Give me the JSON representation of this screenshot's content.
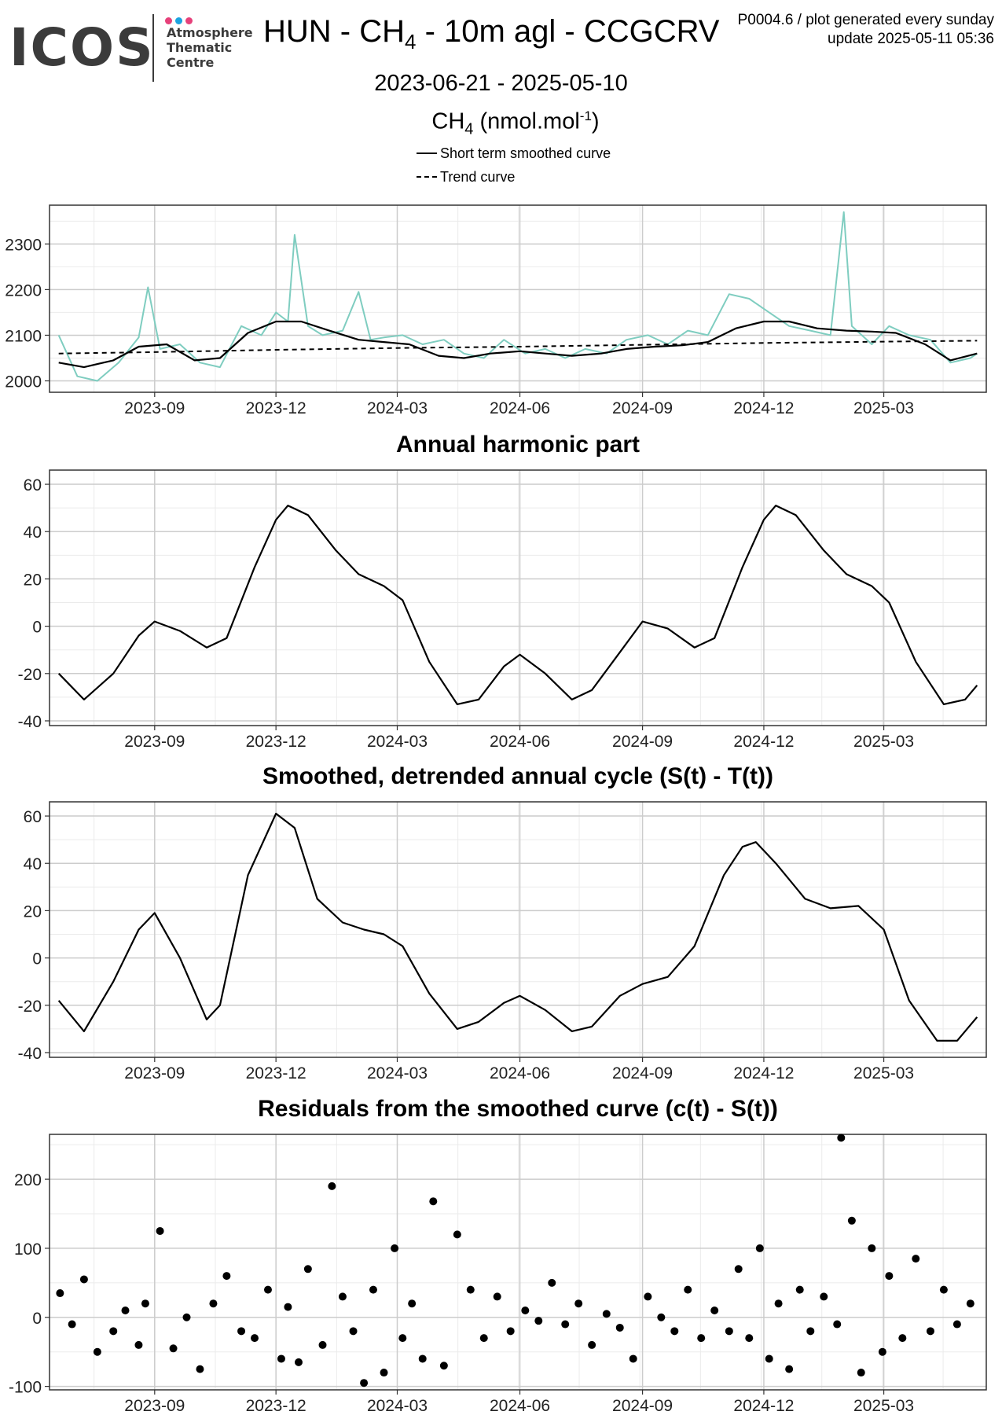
{
  "header": {
    "logo_word": "ICOS",
    "logo_lines": [
      "Atmosphere",
      "Thematic",
      "Centre"
    ],
    "title_parts": [
      "HUN - CH",
      "4",
      " - 10m agl - CCGCRV"
    ],
    "note_line1": "P0004.6 / plot generated every sunday",
    "note_line2": "update  2025-05-11 05:36",
    "date_range": "2023-06-21 - 2025-05-10",
    "ylabel_parts": [
      "CH",
      "4",
      " (nmol.mol",
      "-1",
      ")"
    ],
    "legend": [
      "Short term smoothed curve",
      "Trend curve"
    ]
  },
  "colors": {
    "raw_series": "#7fcdc0",
    "curve": "#000000",
    "logo_dot1": "#e6407a",
    "logo_dot2": "#1ba3e0",
    "logo_dot3": "#e6407a"
  },
  "chart_data": [
    {
      "type": "line",
      "title": "",
      "x_range": [
        "2023-06-21",
        "2025-05-10"
      ],
      "x_ticks": [
        "2023-09",
        "2023-12",
        "2024-03",
        "2024-06",
        "2024-09",
        "2024-12",
        "2025-03"
      ],
      "y_ticks": [
        2000,
        2100,
        2200,
        2300
      ],
      "ylim": [
        1975,
        2385
      ],
      "grid": true,
      "series": [
        {
          "name": "",
          "style": "raw",
          "x": [
            "2023-06-21",
            "2023-07-05",
            "2023-07-20",
            "2023-08-05",
            "2023-08-20",
            "2023-08-27",
            "2023-09-05",
            "2023-09-20",
            "2023-10-05",
            "2023-10-20",
            "2023-11-05",
            "2023-11-20",
            "2023-12-01",
            "2023-12-10",
            "2023-12-15",
            "2023-12-25",
            "2024-01-05",
            "2024-01-20",
            "2024-02-01",
            "2024-02-10",
            "2024-02-20",
            "2024-03-05",
            "2024-03-20",
            "2024-04-05",
            "2024-04-20",
            "2024-05-05",
            "2024-05-20",
            "2024-06-05",
            "2024-06-20",
            "2024-07-05",
            "2024-07-20",
            "2024-08-05",
            "2024-08-20",
            "2024-09-05",
            "2024-09-20",
            "2024-10-05",
            "2024-10-20",
            "2024-11-05",
            "2024-11-20",
            "2024-12-05",
            "2024-12-20",
            "2025-01-05",
            "2025-01-20",
            "2025-01-30",
            "2025-02-05",
            "2025-02-20",
            "2025-03-05",
            "2025-03-20",
            "2025-04-05",
            "2025-04-20",
            "2025-05-05",
            "2025-05-10"
          ],
          "values": [
            2100,
            2010,
            2000,
            2040,
            2095,
            2205,
            2070,
            2080,
            2040,
            2030,
            2120,
            2100,
            2150,
            2130,
            2320,
            2120,
            2100,
            2110,
            2195,
            2090,
            2095,
            2100,
            2080,
            2090,
            2060,
            2050,
            2090,
            2060,
            2070,
            2050,
            2070,
            2060,
            2090,
            2100,
            2080,
            2110,
            2100,
            2190,
            2180,
            2150,
            2120,
            2110,
            2100,
            2370,
            2120,
            2080,
            2120,
            2100,
            2090,
            2040,
            2050,
            2060
          ]
        },
        {
          "name": "Short term smoothed curve",
          "style": "solid",
          "x": [
            "2023-06-21",
            "2023-07-10",
            "2023-08-01",
            "2023-08-20",
            "2023-09-10",
            "2023-10-01",
            "2023-10-20",
            "2023-11-10",
            "2023-12-01",
            "2023-12-20",
            "2024-01-10",
            "2024-02-01",
            "2024-02-20",
            "2024-03-10",
            "2024-04-01",
            "2024-04-20",
            "2024-05-10",
            "2024-06-01",
            "2024-06-20",
            "2024-07-10",
            "2024-08-01",
            "2024-08-20",
            "2024-09-10",
            "2024-10-01",
            "2024-10-20",
            "2024-11-10",
            "2024-12-01",
            "2024-12-20",
            "2025-01-10",
            "2025-02-01",
            "2025-02-20",
            "2025-03-10",
            "2025-04-01",
            "2025-04-20",
            "2025-05-10"
          ],
          "values": [
            2040,
            2030,
            2045,
            2075,
            2080,
            2045,
            2050,
            2105,
            2130,
            2130,
            2110,
            2090,
            2085,
            2080,
            2055,
            2050,
            2060,
            2065,
            2060,
            2055,
            2060,
            2070,
            2075,
            2078,
            2085,
            2115,
            2130,
            2130,
            2115,
            2110,
            2108,
            2105,
            2080,
            2045,
            2060
          ]
        },
        {
          "name": "Trend curve",
          "style": "dashed",
          "x": [
            "2023-06-21",
            "2023-09-01",
            "2023-12-01",
            "2024-03-01",
            "2024-06-01",
            "2024-09-01",
            "2024-12-01",
            "2025-03-01",
            "2025-05-10"
          ],
          "values": [
            2060,
            2063,
            2068,
            2072,
            2075,
            2079,
            2083,
            2086,
            2088
          ]
        }
      ]
    },
    {
      "type": "line",
      "title": "Annual harmonic part",
      "x_range": [
        "2023-06-21",
        "2025-05-10"
      ],
      "x_ticks": [
        "2023-09",
        "2023-12",
        "2024-03",
        "2024-06",
        "2024-09",
        "2024-12",
        "2025-03"
      ],
      "y_ticks": [
        -40,
        -20,
        0,
        20,
        40,
        60
      ],
      "ylim": [
        -42,
        66
      ],
      "grid": true,
      "series": [
        {
          "name": "",
          "style": "solid",
          "x": [
            "2023-06-21",
            "2023-07-10",
            "2023-08-01",
            "2023-08-20",
            "2023-09-01",
            "2023-09-20",
            "2023-10-10",
            "2023-10-25",
            "2023-11-15",
            "2023-12-01",
            "2023-12-10",
            "2023-12-25",
            "2024-01-15",
            "2024-02-01",
            "2024-02-20",
            "2024-03-05",
            "2024-03-25",
            "2024-04-15",
            "2024-05-01",
            "2024-05-20",
            "2024-06-01",
            "2024-06-20",
            "2024-07-10",
            "2024-07-25",
            "2024-08-15",
            "2024-09-01",
            "2024-09-20",
            "2024-10-10",
            "2024-10-25",
            "2024-11-15",
            "2024-12-01",
            "2024-12-10",
            "2024-12-25",
            "2025-01-15",
            "2025-02-01",
            "2025-02-20",
            "2025-03-05",
            "2025-03-25",
            "2025-04-15",
            "2025-05-01",
            "2025-05-10"
          ],
          "values": [
            -20,
            -31,
            -20,
            -4,
            2,
            -2,
            -9,
            -5,
            25,
            45,
            51,
            47,
            32,
            22,
            17,
            11,
            -15,
            -33,
            -31,
            -17,
            -12,
            -20,
            -31,
            -27,
            -11,
            2,
            -1,
            -9,
            -5,
            25,
            45,
            51,
            47,
            32,
            22,
            17,
            10,
            -15,
            -33,
            -31,
            -25
          ]
        }
      ]
    },
    {
      "type": "line",
      "title": "Smoothed, detrended annual cycle (S(t) - T(t))",
      "x_range": [
        "2023-06-21",
        "2025-05-10"
      ],
      "x_ticks": [
        "2023-09",
        "2023-12",
        "2024-03",
        "2024-06",
        "2024-09",
        "2024-12",
        "2025-03"
      ],
      "y_ticks": [
        -40,
        -20,
        0,
        20,
        40,
        60
      ],
      "ylim": [
        -42,
        66
      ],
      "grid": true,
      "series": [
        {
          "name": "",
          "style": "solid",
          "x": [
            "2023-06-21",
            "2023-07-10",
            "2023-08-01",
            "2023-08-20",
            "2023-09-01",
            "2023-09-20",
            "2023-10-10",
            "2023-10-20",
            "2023-11-10",
            "2023-12-01",
            "2023-12-15",
            "2024-01-01",
            "2024-01-20",
            "2024-02-05",
            "2024-02-20",
            "2024-03-05",
            "2024-03-25",
            "2024-04-15",
            "2024-05-01",
            "2024-05-20",
            "2024-06-01",
            "2024-06-20",
            "2024-07-10",
            "2024-07-25",
            "2024-08-15",
            "2024-09-01",
            "2024-09-20",
            "2024-10-10",
            "2024-11-01",
            "2024-11-15",
            "2024-11-25",
            "2024-12-10",
            "2025-01-01",
            "2025-01-20",
            "2025-02-10",
            "2025-03-01",
            "2025-03-20",
            "2025-04-10",
            "2025-04-25",
            "2025-05-10"
          ],
          "values": [
            -18,
            -31,
            -10,
            12,
            19,
            0,
            -26,
            -20,
            35,
            61,
            55,
            25,
            15,
            12,
            10,
            5,
            -15,
            -30,
            -27,
            -19,
            -16,
            -22,
            -31,
            -29,
            -16,
            -11,
            -8,
            5,
            35,
            47,
            49,
            40,
            25,
            21,
            22,
            12,
            -18,
            -35,
            -35,
            -25
          ]
        }
      ]
    },
    {
      "type": "scatter",
      "title": "Residuals from the smoothed curve (c(t) - S(t))",
      "x_range": [
        "2023-06-21",
        "2025-05-10"
      ],
      "x_ticks": [
        "2023-09",
        "2023-12",
        "2024-03",
        "2024-06",
        "2024-09",
        "2024-12",
        "2025-03"
      ],
      "y_ticks": [
        -100,
        0,
        100,
        200
      ],
      "ylim": [
        -105,
        265
      ],
      "grid": true,
      "points": {
        "x": [
          "2023-06-22",
          "2023-07-01",
          "2023-07-10",
          "2023-07-20",
          "2023-08-01",
          "2023-08-10",
          "2023-08-20",
          "2023-08-25",
          "2023-09-05",
          "2023-09-15",
          "2023-09-25",
          "2023-10-05",
          "2023-10-15",
          "2023-10-25",
          "2023-11-05",
          "2023-11-15",
          "2023-11-25",
          "2023-12-05",
          "2023-12-10",
          "2023-12-18",
          "2023-12-25",
          "2024-01-05",
          "2024-01-12",
          "2024-01-20",
          "2024-01-28",
          "2024-02-05",
          "2024-02-12",
          "2024-02-20",
          "2024-02-28",
          "2024-03-05",
          "2024-03-12",
          "2024-03-20",
          "2024-03-28",
          "2024-04-05",
          "2024-04-15",
          "2024-04-25",
          "2024-05-05",
          "2024-05-15",
          "2024-05-25",
          "2024-06-05",
          "2024-06-15",
          "2024-06-25",
          "2024-07-05",
          "2024-07-15",
          "2024-07-25",
          "2024-08-05",
          "2024-08-15",
          "2024-08-25",
          "2024-09-05",
          "2024-09-15",
          "2024-09-25",
          "2024-10-05",
          "2024-10-15",
          "2024-10-25",
          "2024-11-05",
          "2024-11-12",
          "2024-11-20",
          "2024-11-28",
          "2024-12-05",
          "2024-12-12",
          "2024-12-20",
          "2024-12-28",
          "2025-01-05",
          "2025-01-15",
          "2025-01-25",
          "2025-01-28",
          "2025-02-05",
          "2025-02-12",
          "2025-02-20",
          "2025-02-28",
          "2025-03-05",
          "2025-03-15",
          "2025-03-25",
          "2025-04-05",
          "2025-04-15",
          "2025-04-25",
          "2025-05-05"
        ],
        "values": [
          35,
          -10,
          55,
          -50,
          -20,
          10,
          -40,
          20,
          125,
          -45,
          0,
          -75,
          20,
          60,
          -20,
          -30,
          40,
          -60,
          15,
          -65,
          70,
          -40,
          190,
          30,
          -20,
          -95,
          40,
          -80,
          100,
          -30,
          20,
          -60,
          168,
          -70,
          120,
          40,
          -30,
          30,
          -20,
          10,
          -5,
          50,
          -10,
          20,
          -40,
          5,
          -15,
          -60,
          30,
          0,
          -20,
          40,
          -30,
          10,
          -20,
          70,
          -30,
          100,
          -60,
          20,
          -75,
          40,
          -20,
          30,
          -10,
          260,
          140,
          -80,
          100,
          -50,
          60,
          -30,
          85,
          -20,
          40,
          -10,
          20
        ]
      }
    }
  ]
}
